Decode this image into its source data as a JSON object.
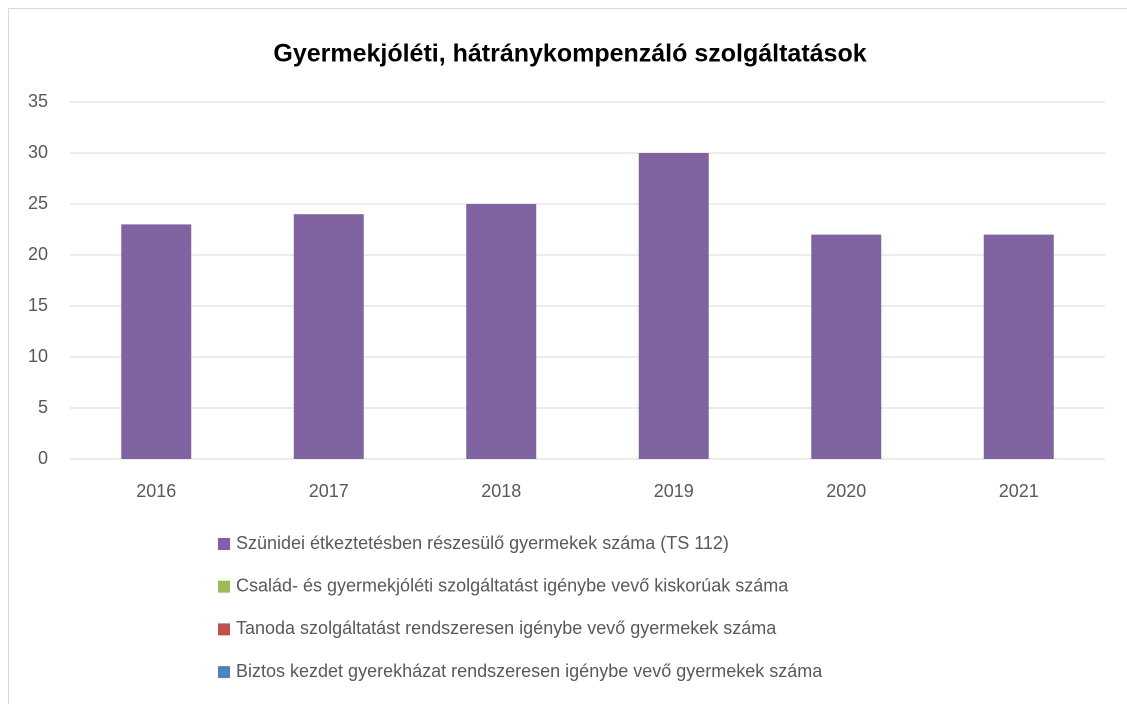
{
  "chart_data": {
    "type": "bar",
    "title": "Gyermekjóléti, hátránykompenzáló szolgáltatások",
    "categories": [
      "2016",
      "2017",
      "2018",
      "2019",
      "2020",
      "2021"
    ],
    "series": [
      {
        "name": "Szünidei étkeztetésben részesülő gyermekek száma (TS 112)",
        "color": "#8064a2",
        "values": [
          23,
          24,
          25,
          30,
          22,
          22
        ]
      },
      {
        "name": "Család- és gyermekjóléti szolgáltatást igénybe vevő kiskorúak száma",
        "color": "#9bbb59",
        "values": [
          null,
          null,
          null,
          null,
          null,
          null
        ]
      },
      {
        "name": "Tanoda szolgáltatást rendszeresen igénybe vevő gyermekek száma",
        "color": "#c0504d",
        "values": [
          null,
          null,
          null,
          null,
          null,
          null
        ]
      },
      {
        "name": "Biztos kezdet gyerekházat rendszeresen igénybe vevő gyermekek száma",
        "color": "#4f81bd",
        "values": [
          null,
          null,
          null,
          null,
          null,
          null
        ]
      }
    ],
    "ylim": [
      0,
      35
    ],
    "yticks": [
      0,
      5,
      10,
      15,
      20,
      25,
      30,
      35
    ],
    "grid": true,
    "legend": "bottom"
  }
}
